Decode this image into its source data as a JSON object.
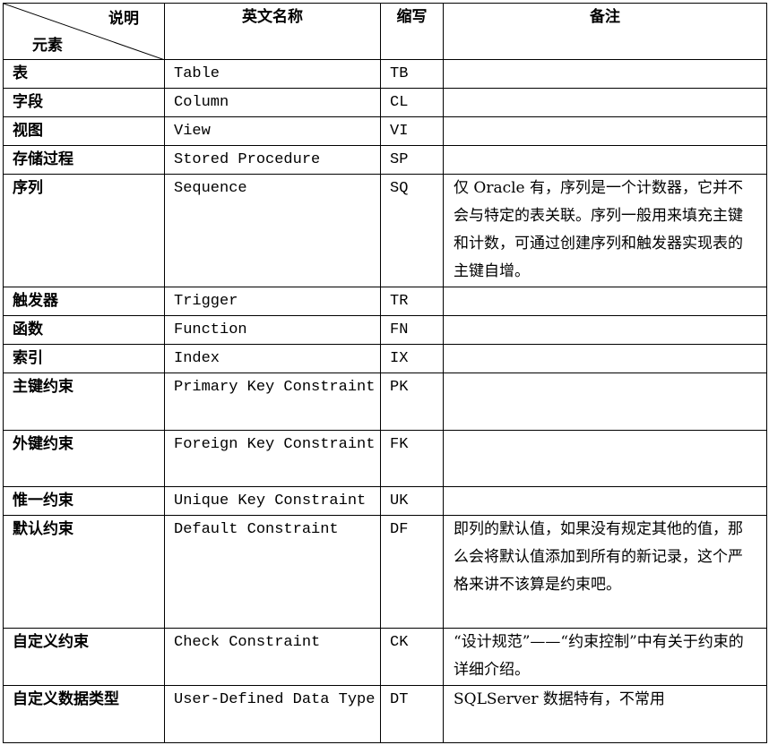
{
  "header": {
    "diag_top": "说明",
    "diag_bottom": "元素",
    "english_name": "英文名称",
    "abbr": "缩写",
    "remark": "备注"
  },
  "rows": [
    {
      "element": "表",
      "english": "Table",
      "abbr": "TB",
      "remark": ""
    },
    {
      "element": "字段",
      "english": "Column",
      "abbr": "CL",
      "remark": ""
    },
    {
      "element": "视图",
      "english": "View",
      "abbr": "VI",
      "remark": ""
    },
    {
      "element": "存储过程",
      "english": "Stored Procedure",
      "abbr": "SP",
      "remark": ""
    },
    {
      "element": "序列",
      "english": "Sequence",
      "abbr": "SQ",
      "remark": "仅 Oracle 有，序列是一个计数器，它并不会与特定的表关联。序列一般用来填充主键和计数，可通过创建序列和触发器实现表的主键自增。"
    },
    {
      "element": "触发器",
      "english": "Trigger",
      "abbr": "TR",
      "remark": ""
    },
    {
      "element": "函数",
      "english": "Function",
      "abbr": "FN",
      "remark": ""
    },
    {
      "element": "索引",
      "english": "Index",
      "abbr": "IX",
      "remark": ""
    },
    {
      "element": "主键约束",
      "english": "Primary Key Constraint",
      "abbr": "PK",
      "remark": ""
    },
    {
      "element": "外键约束",
      "english": "Foreign Key Constraint",
      "abbr": "FK",
      "remark": ""
    },
    {
      "element": "惟一约束",
      "english": "Unique Key Constraint",
      "abbr": "UK",
      "remark": ""
    },
    {
      "element": "默认约束",
      "english": "Default Constraint",
      "abbr": "DF",
      "remark": "即列的默认值，如果没有规定其他的值，那么会将默认值添加到所有的新记录，这个严格来讲不该算是约束吧。"
    },
    {
      "element": "自定义约束",
      "english": "Check Constraint",
      "abbr": "CK",
      "remark": "“设计规范”——“约束控制”中有关于约束的详细介绍。"
    },
    {
      "element": "自定义数据类型",
      "english": "User-Defined Data Type",
      "abbr": "DT",
      "remark": "SQLServer 数据特有，不常用"
    }
  ]
}
